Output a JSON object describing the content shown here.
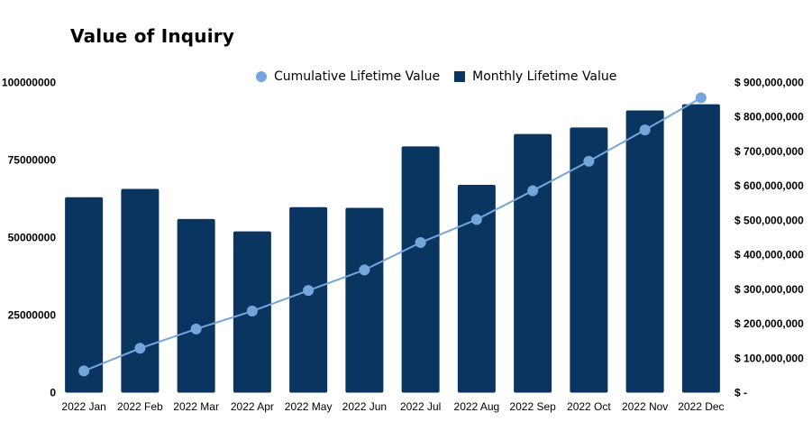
{
  "chart_data": {
    "type": "bar",
    "title": "Value of Inquiry",
    "categories": [
      "2022 Jan",
      "2022 Feb",
      "2022 Mar",
      "2022 Apr",
      "2022 May",
      "2022 Jun",
      "2022 Jul",
      "2022 Aug",
      "2022 Sep",
      "2022 Oct",
      "2022 Nov",
      "2022 Dec"
    ],
    "series": [
      {
        "name": "Monthly Lifetime Value",
        "type": "bar",
        "axis": "left",
        "color": "#0b3561",
        "values": [
          63000000,
          65700000,
          56000000,
          52000000,
          59800000,
          59600000,
          79400000,
          67000000,
          83400000,
          85500000,
          91000000,
          93000000
        ]
      },
      {
        "name": "Cumulative Lifetime Value",
        "type": "line",
        "axis": "right",
        "color": "#74a6dc",
        "values": [
          63000000,
          128700000,
          184700000,
          236700000,
          296500000,
          356100000,
          435500000,
          502500000,
          585900000,
          671400000,
          762400000,
          855400000
        ]
      }
    ],
    "y_left": {
      "ylim": [
        0,
        100000000
      ],
      "ticks": [
        "0",
        "25000000",
        "50000000",
        "75000000",
        "100000000"
      ]
    },
    "y_right": {
      "ylim": [
        0,
        900000000
      ],
      "ticks": [
        "$ -",
        "$ 100,000,000",
        "$ 200,000,000",
        "$ 300,000,000",
        "$ 400,000,000",
        "$ 500,000,000",
        "$ 600,000,000",
        "$ 700,000,000",
        "$ 800,000,000",
        "$ 900,000,000"
      ]
    },
    "legend_position": "top",
    "grid": false
  }
}
